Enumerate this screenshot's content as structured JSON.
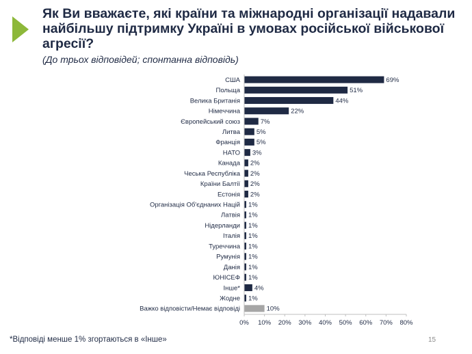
{
  "slide": {
    "title": "Як Ви вважаєте, які країни та міжнародні організації надавали найбільшу підтримку Україні в умовах російської військової агресії?",
    "subtitle": "(До трьох відповідей; спонтанна відповідь)",
    "footnote": "*Відповіді менше 1% згортаються в «Інше»",
    "page_number": "15"
  },
  "colors": {
    "bar": "#1f2a44",
    "bar_na": "#a6a6a6",
    "accent": "#8db83a",
    "axis": "#bfbfbf"
  },
  "chart_data": {
    "type": "bar",
    "orientation": "horizontal",
    "title": "Як Ви вважаєте, які країни та міжнародні організації надавали найбільшу підтримку Україні в умовах російської військової агресії?",
    "categories": [
      "США",
      "Польща",
      "Велика Британія",
      "Німеччина",
      "Європейський союз",
      "Литва",
      "Франція",
      "НАТО",
      "Канада",
      "Чеська Республіка",
      "Країни Балтії",
      "Естонія",
      "Організація Об'єднаних Націй",
      "Латвія",
      "Нідерланди",
      "Італія",
      "Туреччина",
      "Румунія",
      "Данія",
      "ЮНІСЕФ",
      "Інше*",
      "Жодне",
      "Важко відповісти/Немає відповіді"
    ],
    "values": [
      69,
      51,
      44,
      22,
      7,
      5,
      5,
      3,
      2,
      2,
      2,
      2,
      1,
      1,
      1,
      1,
      1,
      1,
      1,
      1,
      4,
      1,
      10
    ],
    "value_labels": [
      "69%",
      "51%",
      "44%",
      "22%",
      "7%",
      "5%",
      "5%",
      "3%",
      "2%",
      "2%",
      "2%",
      "2%",
      "1%",
      "1%",
      "1%",
      "1%",
      "1%",
      "1%",
      "1%",
      "1%",
      "4%",
      "1%",
      "10%"
    ],
    "x_ticks": [
      "0%",
      "10%",
      "20%",
      "30%",
      "40%",
      "50%",
      "60%",
      "70%",
      "80%"
    ],
    "xlim": [
      0,
      80
    ],
    "highlight_last": true,
    "grid": false,
    "legend": "none"
  }
}
